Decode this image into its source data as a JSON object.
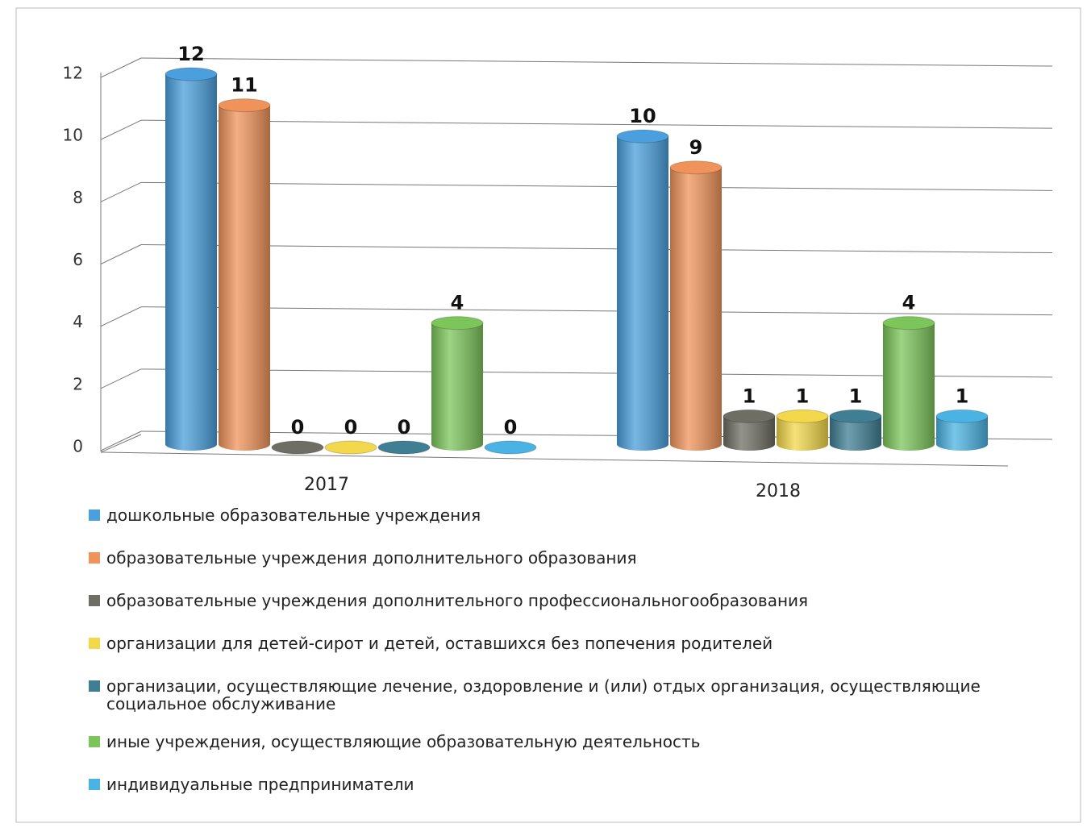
{
  "chart_data": {
    "type": "bar",
    "categories": [
      "2017",
      "2018"
    ],
    "series": [
      {
        "name": "дошкольные образовательные учреждения",
        "color": "#4a9fdc",
        "values": [
          12,
          10
        ]
      },
      {
        "name": "образовательные учреждения дополнительного образования",
        "color": "#f0935a",
        "values": [
          11,
          9
        ]
      },
      {
        "name": "образовательные учреждения дополнительного профессиональногообразования",
        "color": "#6e6e64",
        "values": [
          0,
          1
        ]
      },
      {
        "name": "организации для детей-сирот и детей, оставшихся без попечения родителей",
        "color": "#f2d84a",
        "values": [
          0,
          1
        ]
      },
      {
        "name": "организации, осуществляющие лечение, оздоровление и (или) отдых организация, осуществляющие социальное обслуживание",
        "color": "#3f7e93",
        "values": [
          0,
          1
        ]
      },
      {
        "name": "иные учреждения, осуществляющие образовательную деятельность",
        "color": "#7cc55a",
        "values": [
          4,
          4
        ]
      },
      {
        "name": "индивидуальные предприниматели",
        "color": "#4ab3e3",
        "values": [
          0,
          1
        ]
      }
    ],
    "ylim": [
      0,
      12
    ],
    "yticks": [
      0,
      2,
      4,
      6,
      8,
      10,
      12
    ],
    "grid": true,
    "legend": "bottom"
  }
}
